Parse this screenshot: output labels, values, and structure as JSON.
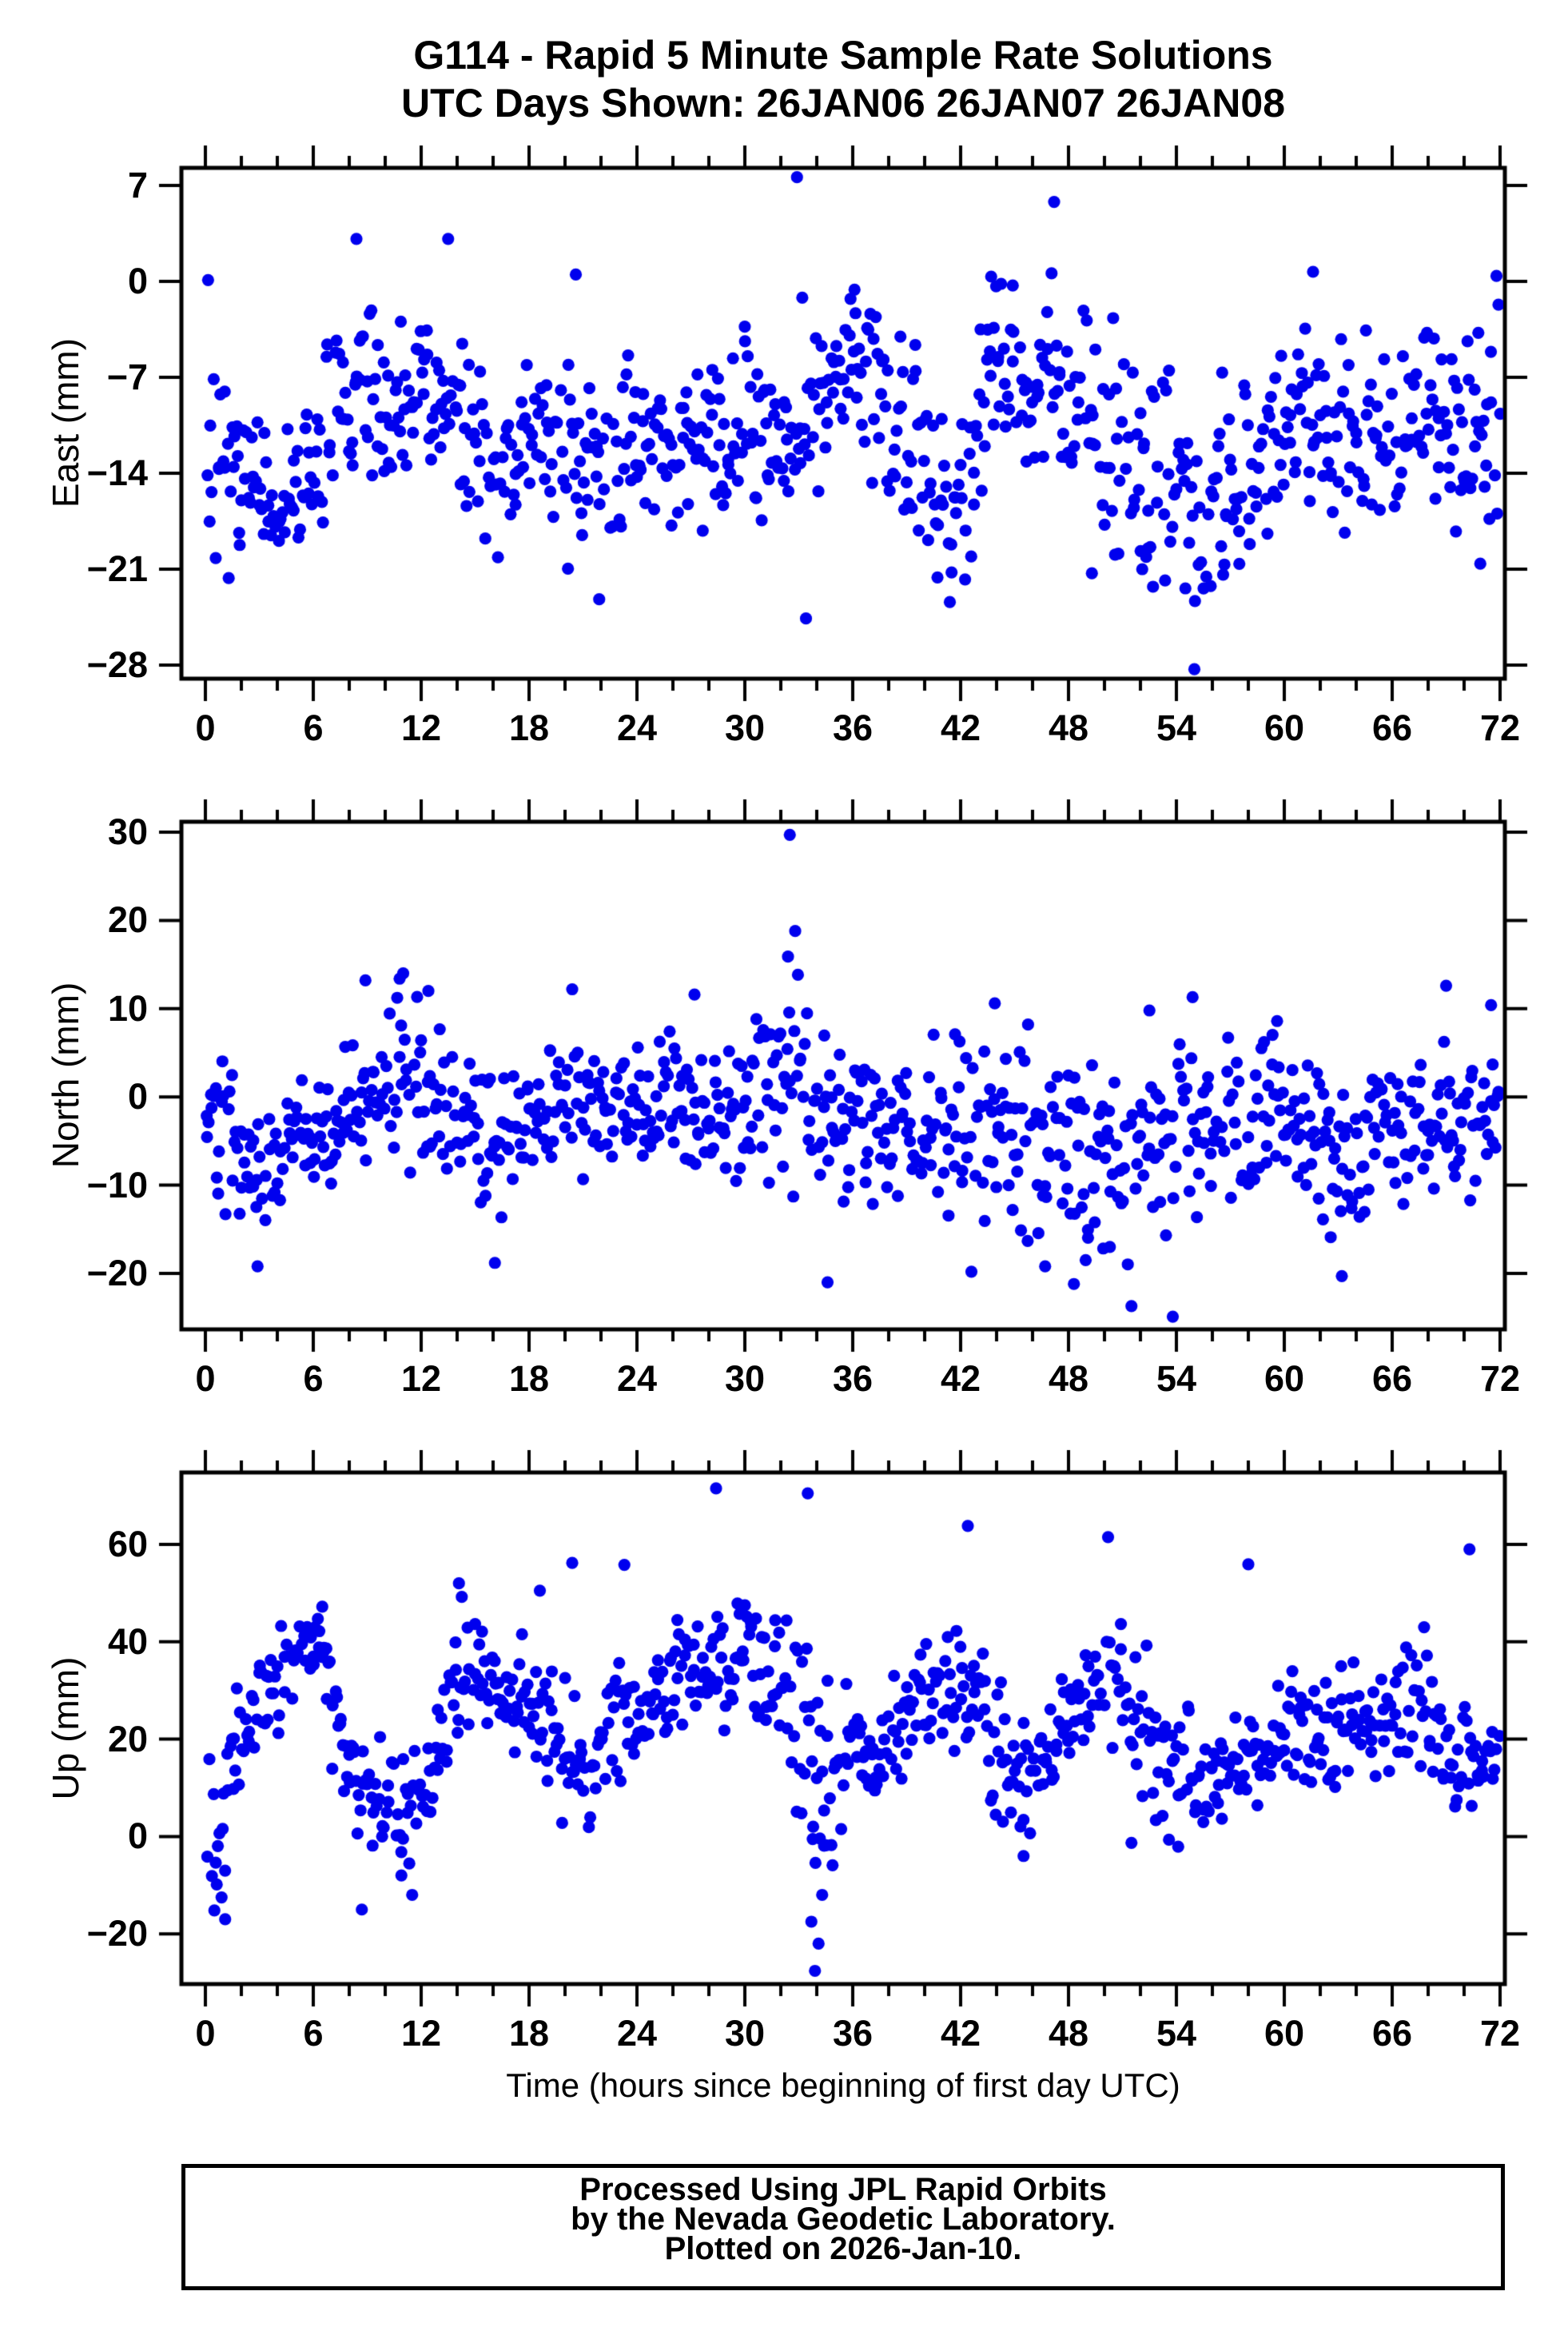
{
  "title": {
    "line1": "G114 - Rapid 5 Minute Sample Rate Solutions",
    "line2": "UTC Days Shown:  26JAN06 26JAN07 26JAN08"
  },
  "x_axis": {
    "title": "Time (hours since beginning of first day UTC)",
    "ticks": [
      0,
      6,
      12,
      18,
      24,
      30,
      36,
      42,
      48,
      54,
      60,
      66,
      72
    ],
    "minor_step": 2,
    "range_hours": [
      0,
      72
    ]
  },
  "panels": [
    {
      "id": "east",
      "ylabel": "East (mm)",
      "yticks": [
        7,
        0,
        -7,
        -14,
        -21,
        -28
      ]
    },
    {
      "id": "north",
      "ylabel": "North (mm)",
      "yticks": [
        30,
        20,
        10,
        0,
        -10,
        -20
      ]
    },
    {
      "id": "up",
      "ylabel": "Up (mm)",
      "yticks": [
        60,
        40,
        20,
        0,
        -20
      ]
    }
  ],
  "footer": {
    "lines": [
      "Processed Using JPL Rapid Orbits",
      "by the Nevada Geodetic Laboratory.",
      "Plotted on 2026-Jan-10."
    ]
  },
  "chart_data": [
    {
      "type": "scatter",
      "name": "East (mm)",
      "xlabel": "Time (hours since beginning of first day UTC)",
      "sample_interval_minutes": 5,
      "n_points": 864,
      "seed": 7,
      "marker": {
        "color": "#0000ee",
        "radius_px": 7.6
      },
      "xlim": [
        0,
        72
      ],
      "ylim": [
        -28.99,
        8.28
      ],
      "trend_keyframes": [
        [
          0,
          -12,
          5
        ],
        [
          0.7,
          -14,
          3.5
        ],
        [
          2,
          -15,
          3
        ],
        [
          3,
          -16,
          2.5
        ],
        [
          4,
          -17,
          2.5
        ],
        [
          5,
          -16,
          3
        ],
        [
          6,
          -13,
          3.5
        ],
        [
          7,
          -11,
          3
        ],
        [
          8,
          -9,
          3.5
        ],
        [
          9,
          -7,
          3
        ],
        [
          10,
          -9,
          3
        ],
        [
          11,
          -9,
          3
        ],
        [
          12,
          -8,
          3
        ],
        [
          13,
          -8,
          3.5
        ],
        [
          14,
          -10,
          3.5
        ],
        [
          15,
          -12,
          3
        ],
        [
          16,
          -13,
          3.5
        ],
        [
          17,
          -12,
          3
        ],
        [
          18,
          -11,
          3
        ],
        [
          19,
          -11,
          3.5
        ],
        [
          20,
          -12,
          4
        ],
        [
          21,
          -13,
          4
        ],
        [
          22,
          -13,
          4
        ],
        [
          23,
          -12,
          3
        ],
        [
          24,
          -12,
          3
        ],
        [
          25,
          -11,
          3
        ],
        [
          26,
          -12,
          3
        ],
        [
          27,
          -12,
          3.5
        ],
        [
          28,
          -12,
          3.5
        ],
        [
          29,
          -12,
          3
        ],
        [
          30,
          -11,
          3.5
        ],
        [
          31,
          -10,
          3.5
        ],
        [
          32,
          -10,
          4
        ],
        [
          33,
          -9,
          4.5
        ],
        [
          34,
          -8,
          3.5
        ],
        [
          35,
          -6,
          2.5
        ],
        [
          36,
          -6,
          3
        ],
        [
          37,
          -7,
          3.5
        ],
        [
          38,
          -9,
          4
        ],
        [
          39,
          -11,
          4
        ],
        [
          40,
          -13,
          4
        ],
        [
          41,
          -16,
          3
        ],
        [
          42,
          -18,
          3
        ],
        [
          43,
          -9,
          4
        ],
        [
          44,
          -6,
          3
        ],
        [
          45,
          -7,
          3
        ],
        [
          46,
          -8,
          3
        ],
        [
          47,
          -7,
          3.5
        ],
        [
          48,
          -9,
          3.5
        ],
        [
          49,
          -10,
          4
        ],
        [
          50,
          -11,
          4
        ],
        [
          51,
          -12,
          4
        ],
        [
          52,
          -12,
          4.5
        ],
        [
          53,
          -13,
          4.5
        ],
        [
          54,
          -15,
          4
        ],
        [
          55,
          -16,
          4
        ],
        [
          56,
          -15,
          4
        ],
        [
          57,
          -14,
          3.5
        ],
        [
          58,
          -13,
          3.5
        ],
        [
          59,
          -12,
          3.5
        ],
        [
          60,
          -11,
          3.5
        ],
        [
          61,
          -10,
          3.5
        ],
        [
          62,
          -11,
          3.5
        ],
        [
          63,
          -11,
          3.5
        ],
        [
          64,
          -10,
          3.5
        ],
        [
          65,
          -11,
          3.5
        ],
        [
          66,
          -12,
          3.5
        ],
        [
          67,
          -10,
          3
        ],
        [
          68,
          -8,
          3
        ],
        [
          69,
          -10,
          3.5
        ],
        [
          70,
          -11,
          3.5
        ],
        [
          71,
          -10,
          3.5
        ],
        [
          72,
          -8,
          4
        ]
      ],
      "notable_points": [
        [
          0.15,
          0.1
        ],
        [
          8.4,
          3.1
        ],
        [
          13.5,
          3.1
        ],
        [
          20.6,
          0.5
        ],
        [
          32.9,
          7.6
        ],
        [
          47.2,
          5.8
        ],
        [
          43.7,
          0.35
        ],
        [
          61.6,
          0.7
        ],
        [
          71.8,
          0.4
        ],
        [
          44.9,
          -0.3
        ],
        [
          36.1,
          -0.6
        ],
        [
          21.9,
          -23.2
        ],
        [
          33.4,
          -24.6
        ],
        [
          41.4,
          -23.4
        ],
        [
          55.0,
          -28.3
        ],
        [
          54.5,
          -22.4
        ],
        [
          70.9,
          -20.6
        ],
        [
          49.3,
          -21.3
        ],
        [
          52.1,
          -21.0
        ],
        [
          56.6,
          -21.4
        ]
      ]
    },
    {
      "type": "scatter",
      "name": "North (mm)",
      "xlabel": "Time (hours since beginning of first day UTC)",
      "sample_interval_minutes": 5,
      "n_points": 864,
      "seed": 40,
      "marker": {
        "color": "#0000ee",
        "radius_px": 7.6
      },
      "xlim": [
        0,
        72
      ],
      "ylim": [
        -26.3,
        31.2
      ],
      "trend_keyframes": [
        [
          0,
          -1,
          3
        ],
        [
          1,
          -4,
          4
        ],
        [
          2,
          -7,
          4.5
        ],
        [
          3,
          -8,
          4
        ],
        [
          4,
          -6,
          3.5
        ],
        [
          5,
          -5,
          3
        ],
        [
          6,
          -4,
          3
        ],
        [
          7,
          -3,
          3.5
        ],
        [
          8,
          -1,
          4
        ],
        [
          9,
          1,
          4.5
        ],
        [
          10,
          1,
          4.5
        ],
        [
          11,
          2,
          5
        ],
        [
          12,
          2,
          4.5
        ],
        [
          13,
          -1,
          4
        ],
        [
          14,
          -4,
          3.5
        ],
        [
          15,
          -5,
          4
        ],
        [
          16,
          -6,
          4
        ],
        [
          17,
          -5,
          3.5
        ],
        [
          18,
          -4,
          4
        ],
        [
          19,
          -2,
          4
        ],
        [
          20,
          -1,
          4.5
        ],
        [
          21,
          -2,
          4
        ],
        [
          22,
          -2,
          3.5
        ],
        [
          23,
          -2,
          3
        ],
        [
          24,
          -1,
          3
        ],
        [
          25,
          -2,
          3.5
        ],
        [
          26,
          -1,
          4
        ],
        [
          27,
          0,
          4
        ],
        [
          28,
          -3,
          4
        ],
        [
          29,
          -4,
          4
        ],
        [
          30,
          -2,
          4.5
        ],
        [
          31,
          1,
          5
        ],
        [
          32,
          4,
          6
        ],
        [
          33,
          1,
          6
        ],
        [
          34,
          -4,
          5
        ],
        [
          35,
          -3,
          4.5
        ],
        [
          36,
          -2,
          4
        ],
        [
          37,
          -3,
          4.5
        ],
        [
          38,
          -4,
          5
        ],
        [
          39,
          -4,
          5
        ],
        [
          40,
          -4,
          5
        ],
        [
          41,
          -5,
          5.5
        ],
        [
          42,
          -5,
          5.5
        ],
        [
          43,
          -4,
          5.5
        ],
        [
          44,
          -4,
          5.5
        ],
        [
          45,
          -5,
          6
        ],
        [
          46,
          -5,
          6
        ],
        [
          47,
          -6,
          6
        ],
        [
          48,
          -6,
          6
        ],
        [
          49,
          -6,
          6
        ],
        [
          50,
          -6,
          6
        ],
        [
          51,
          -7,
          6
        ],
        [
          52,
          -4,
          5.5
        ],
        [
          53,
          -4,
          5.5
        ],
        [
          54,
          -3,
          5.5
        ],
        [
          55,
          -3,
          5
        ],
        [
          56,
          -2,
          5
        ],
        [
          57,
          -3,
          4.5
        ],
        [
          58,
          -3,
          4.5
        ],
        [
          59,
          -2,
          4.5
        ],
        [
          60,
          -3,
          4.5
        ],
        [
          61,
          -5,
          4.5
        ],
        [
          62,
          -6,
          4.5
        ],
        [
          63,
          -6,
          4.5
        ],
        [
          64,
          -6,
          4.5
        ],
        [
          65,
          -5,
          4
        ],
        [
          66,
          -4,
          4
        ],
        [
          67,
          -3,
          4
        ],
        [
          68,
          -3,
          4
        ],
        [
          69,
          -3,
          4.5
        ],
        [
          70,
          -4,
          4.5
        ],
        [
          71,
          -5,
          4.5
        ],
        [
          72,
          -5,
          5
        ]
      ],
      "notable_points": [
        [
          32.5,
          29.7
        ],
        [
          32.8,
          18.8
        ],
        [
          32.4,
          15.9
        ],
        [
          11.0,
          14.0
        ],
        [
          10.8,
          13.4
        ],
        [
          8.9,
          13.2
        ],
        [
          12.4,
          12.0
        ],
        [
          20.4,
          12.2
        ],
        [
          27.2,
          11.6
        ],
        [
          54.9,
          11.3
        ],
        [
          52.5,
          9.8
        ],
        [
          43.9,
          10.6
        ],
        [
          69.0,
          12.6
        ],
        [
          71.5,
          10.4
        ],
        [
          59.6,
          8.6
        ],
        [
          2.9,
          -19.2
        ],
        [
          16.1,
          -18.8
        ],
        [
          34.6,
          -21.0
        ],
        [
          42.6,
          -19.8
        ],
        [
          46.7,
          -19.2
        ],
        [
          48.3,
          -21.2
        ],
        [
          50.3,
          -17.0
        ],
        [
          51.5,
          -23.7
        ],
        [
          53.8,
          -24.9
        ],
        [
          63.2,
          -20.3
        ]
      ]
    },
    {
      "type": "scatter",
      "name": "Up (mm)",
      "xlabel": "Time (hours since beginning of first day UTC)",
      "sample_interval_minutes": 5,
      "n_points": 864,
      "seed": 9000,
      "marker": {
        "color": "#0000ee",
        "radius_px": 7.6
      },
      "xlim": [
        0,
        72
      ],
      "ylim": [
        -30.3,
        74.8
      ],
      "trend_keyframes": [
        [
          0,
          3,
          7
        ],
        [
          0.8,
          -2,
          7
        ],
        [
          1.5,
          15,
          6
        ],
        [
          2.5,
          24,
          6
        ],
        [
          3.5,
          30,
          5
        ],
        [
          4.5,
          34,
          5
        ],
        [
          5.5,
          37,
          5
        ],
        [
          6.3,
          41,
          4
        ],
        [
          7,
          30,
          7
        ],
        [
          8,
          13,
          5
        ],
        [
          9,
          10,
          5
        ],
        [
          10,
          7,
          6
        ],
        [
          11,
          4,
          6
        ],
        [
          12,
          8,
          6
        ],
        [
          13,
          20,
          8
        ],
        [
          14,
          33,
          8
        ],
        [
          15,
          32,
          6
        ],
        [
          16,
          30,
          5
        ],
        [
          17,
          28,
          5
        ],
        [
          18,
          30,
          6
        ],
        [
          19,
          25,
          7
        ],
        [
          20,
          17,
          8
        ],
        [
          21,
          14,
          7
        ],
        [
          22,
          22,
          6
        ],
        [
          23,
          26,
          7
        ],
        [
          24,
          22,
          5
        ],
        [
          25,
          28,
          6
        ],
        [
          26,
          33,
          6
        ],
        [
          27,
          36,
          6
        ],
        [
          28,
          38,
          7
        ],
        [
          29,
          34,
          6
        ],
        [
          30,
          38,
          7
        ],
        [
          31,
          30,
          7
        ],
        [
          32,
          31,
          8
        ],
        [
          33,
          26,
          10
        ],
        [
          34,
          4,
          12
        ],
        [
          35,
          14,
          8
        ],
        [
          36,
          18,
          6
        ],
        [
          37,
          15,
          6
        ],
        [
          38,
          18,
          6
        ],
        [
          39,
          24,
          6
        ],
        [
          40,
          31,
          7
        ],
        [
          41,
          29,
          7
        ],
        [
          42,
          32,
          8
        ],
        [
          43,
          27,
          8
        ],
        [
          44,
          18,
          7
        ],
        [
          45,
          13,
          6
        ],
        [
          46,
          14,
          6
        ],
        [
          47,
          18,
          7
        ],
        [
          48,
          24,
          7
        ],
        [
          49,
          29,
          7
        ],
        [
          50,
          33,
          8
        ],
        [
          51,
          29,
          8
        ],
        [
          52,
          22,
          9
        ],
        [
          53,
          18,
          8
        ],
        [
          54,
          14,
          7
        ],
        [
          55,
          12,
          6
        ],
        [
          56,
          14,
          6
        ],
        [
          57,
          16,
          6
        ],
        [
          58,
          18,
          7
        ],
        [
          59,
          18,
          6
        ],
        [
          60,
          20,
          6
        ],
        [
          61,
          22,
          6
        ],
        [
          62,
          20,
          6
        ],
        [
          63,
          22,
          6
        ],
        [
          64,
          25,
          6
        ],
        [
          65,
          23,
          6
        ],
        [
          66,
          25,
          6
        ],
        [
          67,
          28,
          6
        ],
        [
          68,
          29,
          7
        ],
        [
          69,
          20,
          7
        ],
        [
          70,
          18,
          6
        ],
        [
          71,
          16,
          5
        ],
        [
          72,
          18,
          5
        ]
      ],
      "notable_points": [
        [
          28.4,
          71.5
        ],
        [
          33.5,
          70.5
        ],
        [
          42.4,
          63.8
        ],
        [
          50.2,
          61.5
        ],
        [
          70.3,
          59.0
        ],
        [
          23.3,
          55.8
        ],
        [
          20.4,
          56.2
        ],
        [
          58.0,
          55.9
        ],
        [
          14.1,
          52.0
        ],
        [
          18.6,
          50.5
        ],
        [
          6.5,
          47.2
        ],
        [
          0.5,
          -15.2
        ],
        [
          0.9,
          -12.5
        ],
        [
          1.1,
          -17.0
        ],
        [
          8.7,
          -15.0
        ],
        [
          10.9,
          -8.0
        ],
        [
          11.5,
          -12.0
        ],
        [
          33.9,
          -27.6
        ],
        [
          34.1,
          -22.0
        ],
        [
          33.7,
          -17.5
        ],
        [
          34.3,
          -12.0
        ],
        [
          34.0,
          12.0
        ],
        [
          33.8,
          2.0
        ],
        [
          34.6,
          32.0
        ],
        [
          45.5,
          -4.0
        ],
        [
          51.5,
          -1.3
        ],
        [
          54.1,
          -2.1
        ]
      ]
    }
  ]
}
